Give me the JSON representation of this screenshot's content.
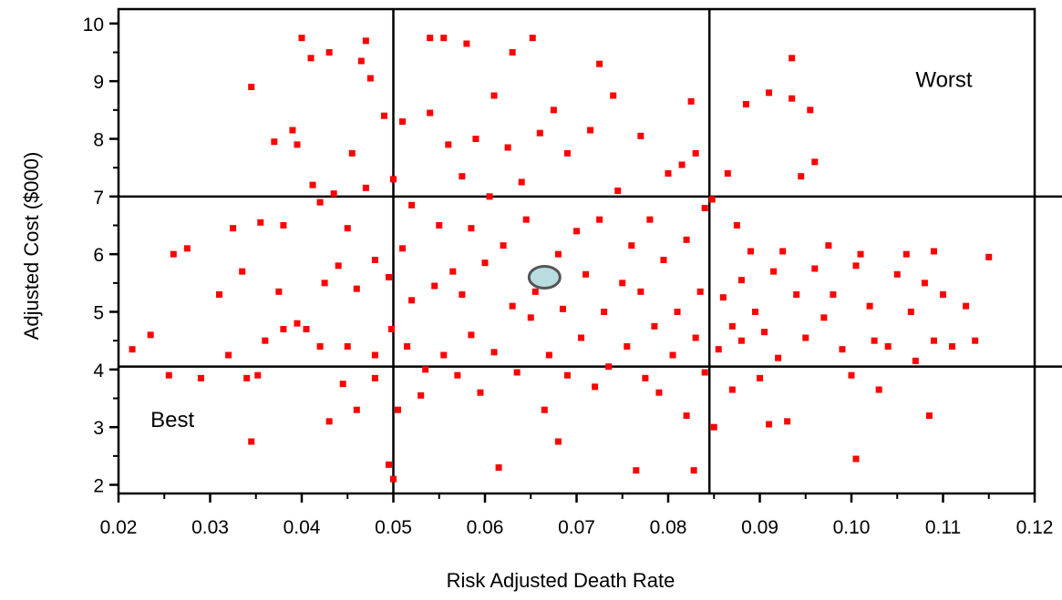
{
  "chart_data": {
    "type": "scatter",
    "xlabel": "Risk Adjusted Death Rate",
    "ylabel": "Adjusted Cost ($000)",
    "xlim": [
      0.02,
      0.12
    ],
    "ylim": [
      1.85,
      10.25
    ],
    "x_ticks": [
      "0.02",
      "0.03",
      "0.04",
      "0.05",
      "0.06",
      "0.07",
      "0.08",
      "0.09",
      "0.10",
      "0.11",
      "0.12"
    ],
    "y_ticks": [
      "2",
      "3",
      "4",
      "5",
      "6",
      "7",
      "8",
      "9",
      "10"
    ],
    "grid": false,
    "reference_lines": {
      "x": [
        0.05,
        0.0845
      ],
      "y": [
        4.05,
        7.0
      ]
    },
    "region_labels": [
      {
        "text": "Worst",
        "x": 0.107,
        "y": 8.9
      },
      {
        "text": "Best",
        "x": 0.0235,
        "y": 3.0
      }
    ],
    "marker_color": "#ff0000",
    "highlight_point": {
      "x": 0.0665,
      "y": 5.6,
      "color": "#b8dde0"
    },
    "points": [
      [
        0.0215,
        4.35
      ],
      [
        0.0235,
        4.6
      ],
      [
        0.0255,
        3.9
      ],
      [
        0.026,
        6.0
      ],
      [
        0.0275,
        6.1
      ],
      [
        0.029,
        3.85
      ],
      [
        0.031,
        5.3
      ],
      [
        0.032,
        4.25
      ],
      [
        0.0325,
        6.45
      ],
      [
        0.0335,
        5.7
      ],
      [
        0.034,
        3.85
      ],
      [
        0.0345,
        8.9
      ],
      [
        0.0345,
        2.75
      ],
      [
        0.0352,
        3.9
      ],
      [
        0.0355,
        6.55
      ],
      [
        0.036,
        4.5
      ],
      [
        0.037,
        7.95
      ],
      [
        0.0375,
        5.35
      ],
      [
        0.038,
        6.5
      ],
      [
        0.038,
        4.7
      ],
      [
        0.039,
        8.15
      ],
      [
        0.0395,
        7.9
      ],
      [
        0.0395,
        4.8
      ],
      [
        0.04,
        9.75
      ],
      [
        0.0405,
        4.7
      ],
      [
        0.041,
        9.4
      ],
      [
        0.0412,
        7.2
      ],
      [
        0.042,
        4.4
      ],
      [
        0.042,
        6.9
      ],
      [
        0.0425,
        5.5
      ],
      [
        0.043,
        9.5
      ],
      [
        0.043,
        3.1
      ],
      [
        0.0435,
        7.05
      ],
      [
        0.044,
        5.8
      ],
      [
        0.0445,
        3.75
      ],
      [
        0.045,
        6.45
      ],
      [
        0.045,
        4.4
      ],
      [
        0.0455,
        7.75
      ],
      [
        0.046,
        5.4
      ],
      [
        0.046,
        3.3
      ],
      [
        0.0465,
        9.35
      ],
      [
        0.047,
        7.15
      ],
      [
        0.047,
        9.7
      ],
      [
        0.0475,
        9.05
      ],
      [
        0.048,
        4.25
      ],
      [
        0.048,
        5.9
      ],
      [
        0.048,
        3.85
      ],
      [
        0.049,
        8.4
      ],
      [
        0.0495,
        2.35
      ],
      [
        0.0495,
        5.6
      ],
      [
        0.0498,
        4.7
      ],
      [
        0.05,
        2.1
      ],
      [
        0.05,
        7.3
      ],
      [
        0.0505,
        3.3
      ],
      [
        0.051,
        6.1
      ],
      [
        0.051,
        8.3
      ],
      [
        0.0515,
        4.4
      ],
      [
        0.052,
        5.2
      ],
      [
        0.052,
        6.85
      ],
      [
        0.053,
        3.55
      ],
      [
        0.0535,
        4.0
      ],
      [
        0.054,
        8.45
      ],
      [
        0.054,
        9.75
      ],
      [
        0.0545,
        5.45
      ],
      [
        0.055,
        6.5
      ],
      [
        0.0555,
        9.75
      ],
      [
        0.0555,
        4.25
      ],
      [
        0.056,
        7.9
      ],
      [
        0.0565,
        5.7
      ],
      [
        0.057,
        3.9
      ],
      [
        0.0575,
        7.35
      ],
      [
        0.0575,
        5.3
      ],
      [
        0.058,
        9.65
      ],
      [
        0.0585,
        4.6
      ],
      [
        0.0585,
        6.45
      ],
      [
        0.059,
        8.0
      ],
      [
        0.0595,
        3.6
      ],
      [
        0.06,
        5.85
      ],
      [
        0.0605,
        7.0
      ],
      [
        0.061,
        8.75
      ],
      [
        0.061,
        4.3
      ],
      [
        0.0615,
        2.3
      ],
      [
        0.062,
        6.15
      ],
      [
        0.0625,
        7.85
      ],
      [
        0.063,
        9.5
      ],
      [
        0.063,
        5.1
      ],
      [
        0.0635,
        3.95
      ],
      [
        0.064,
        7.25
      ],
      [
        0.0645,
        6.6
      ],
      [
        0.065,
        4.9
      ],
      [
        0.0652,
        9.75
      ],
      [
        0.0655,
        5.35
      ],
      [
        0.066,
        8.1
      ],
      [
        0.0665,
        3.3
      ],
      [
        0.067,
        4.25
      ],
      [
        0.0675,
        8.5
      ],
      [
        0.068,
        6.0
      ],
      [
        0.068,
        2.75
      ],
      [
        0.0685,
        5.05
      ],
      [
        0.069,
        7.75
      ],
      [
        0.069,
        3.9
      ],
      [
        0.07,
        6.4
      ],
      [
        0.0705,
        4.55
      ],
      [
        0.071,
        5.65
      ],
      [
        0.0715,
        8.15
      ],
      [
        0.072,
        3.7
      ],
      [
        0.0725,
        9.3
      ],
      [
        0.0725,
        6.6
      ],
      [
        0.073,
        5.0
      ],
      [
        0.0735,
        4.05
      ],
      [
        0.074,
        8.75
      ],
      [
        0.0745,
        7.1
      ],
      [
        0.075,
        5.5
      ],
      [
        0.0755,
        4.4
      ],
      [
        0.076,
        6.15
      ],
      [
        0.0765,
        2.25
      ],
      [
        0.077,
        8.05
      ],
      [
        0.077,
        5.35
      ],
      [
        0.0775,
        3.85
      ],
      [
        0.078,
        6.6
      ],
      [
        0.0785,
        4.75
      ],
      [
        0.079,
        3.6
      ],
      [
        0.0795,
        5.9
      ],
      [
        0.08,
        7.4
      ],
      [
        0.0805,
        4.25
      ],
      [
        0.081,
        5.0
      ],
      [
        0.0815,
        7.55
      ],
      [
        0.082,
        3.2
      ],
      [
        0.082,
        6.25
      ],
      [
        0.0825,
        8.65
      ],
      [
        0.0828,
        2.25
      ],
      [
        0.083,
        7.75
      ],
      [
        0.083,
        4.55
      ],
      [
        0.0835,
        5.35
      ],
      [
        0.084,
        3.95
      ],
      [
        0.084,
        6.8
      ],
      [
        0.0848,
        6.95
      ],
      [
        0.085,
        3.0
      ],
      [
        0.0855,
        4.35
      ],
      [
        0.086,
        5.25
      ],
      [
        0.0865,
        7.4
      ],
      [
        0.087,
        4.75
      ],
      [
        0.087,
        3.65
      ],
      [
        0.0875,
        6.5
      ],
      [
        0.088,
        5.55
      ],
      [
        0.088,
        4.5
      ],
      [
        0.0885,
        8.6
      ],
      [
        0.089,
        6.05
      ],
      [
        0.0895,
        5.0
      ],
      [
        0.09,
        3.85
      ],
      [
        0.0905,
        4.65
      ],
      [
        0.091,
        8.8
      ],
      [
        0.091,
        3.05
      ],
      [
        0.0915,
        5.7
      ],
      [
        0.092,
        4.2
      ],
      [
        0.0925,
        6.05
      ],
      [
        0.093,
        3.1
      ],
      [
        0.0935,
        9.4
      ],
      [
        0.0935,
        8.7
      ],
      [
        0.094,
        5.3
      ],
      [
        0.0945,
        7.35
      ],
      [
        0.095,
        4.55
      ],
      [
        0.0955,
        8.5
      ],
      [
        0.096,
        7.6
      ],
      [
        0.096,
        5.75
      ],
      [
        0.097,
        4.9
      ],
      [
        0.0975,
        6.15
      ],
      [
        0.098,
        5.3
      ],
      [
        0.099,
        4.35
      ],
      [
        0.1,
        3.9
      ],
      [
        0.1005,
        2.45
      ],
      [
        0.1005,
        5.8
      ],
      [
        0.101,
        6.0
      ],
      [
        0.102,
        5.1
      ],
      [
        0.1025,
        4.5
      ],
      [
        0.103,
        3.65
      ],
      [
        0.104,
        4.4
      ],
      [
        0.105,
        5.65
      ],
      [
        0.106,
        6.0
      ],
      [
        0.1065,
        5.0
      ],
      [
        0.107,
        4.15
      ],
      [
        0.108,
        5.5
      ],
      [
        0.1085,
        3.2
      ],
      [
        0.109,
        6.05
      ],
      [
        0.109,
        4.5
      ],
      [
        0.11,
        5.3
      ],
      [
        0.111,
        4.4
      ],
      [
        0.1125,
        5.1
      ],
      [
        0.1135,
        4.5
      ],
      [
        0.115,
        5.95
      ]
    ]
  }
}
